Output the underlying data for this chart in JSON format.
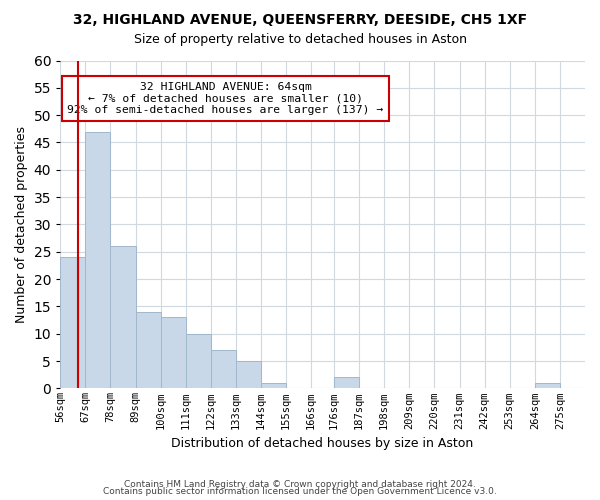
{
  "title": "32, HIGHLAND AVENUE, QUEENSFERRY, DEESIDE, CH5 1XF",
  "subtitle": "Size of property relative to detached houses in Aston",
  "xlabel": "Distribution of detached houses by size in Aston",
  "ylabel": "Number of detached properties",
  "bin_labels": [
    "56sqm",
    "67sqm",
    "78sqm",
    "89sqm",
    "100sqm",
    "111sqm",
    "122sqm",
    "133sqm",
    "144sqm",
    "155sqm",
    "166sqm",
    "176sqm",
    "187sqm",
    "198sqm",
    "209sqm",
    "220sqm",
    "231sqm",
    "242sqm",
    "253sqm",
    "264sqm",
    "275sqm"
  ],
  "bar_values": [
    24,
    47,
    26,
    14,
    13,
    10,
    7,
    5,
    1,
    0,
    0,
    2,
    0,
    0,
    0,
    0,
    0,
    0,
    0,
    1
  ],
  "bar_color": "#c8d8e8",
  "bar_edge_color": "#a0b8cc",
  "ylim": [
    0,
    60
  ],
  "yticks": [
    0,
    5,
    10,
    15,
    20,
    25,
    30,
    35,
    40,
    45,
    50,
    55,
    60
  ],
  "property_line_x": 64,
  "annotation_title": "32 HIGHLAND AVENUE: 64sqm",
  "annotation_line1": "← 7% of detached houses are smaller (10)",
  "annotation_line2": "92% of semi-detached houses are larger (137) →",
  "annotation_box_color": "#ffffff",
  "annotation_box_edge_color": "#cc0000",
  "property_line_color": "#cc0000",
  "footer1": "Contains HM Land Registry data © Crown copyright and database right 2024.",
  "footer2": "Contains public sector information licensed under the Open Government Licence v3.0.",
  "bin_edges": [
    56,
    67,
    78,
    89,
    100,
    111,
    122,
    133,
    144,
    155,
    166,
    176,
    187,
    198,
    209,
    220,
    231,
    242,
    253,
    264,
    275
  ]
}
